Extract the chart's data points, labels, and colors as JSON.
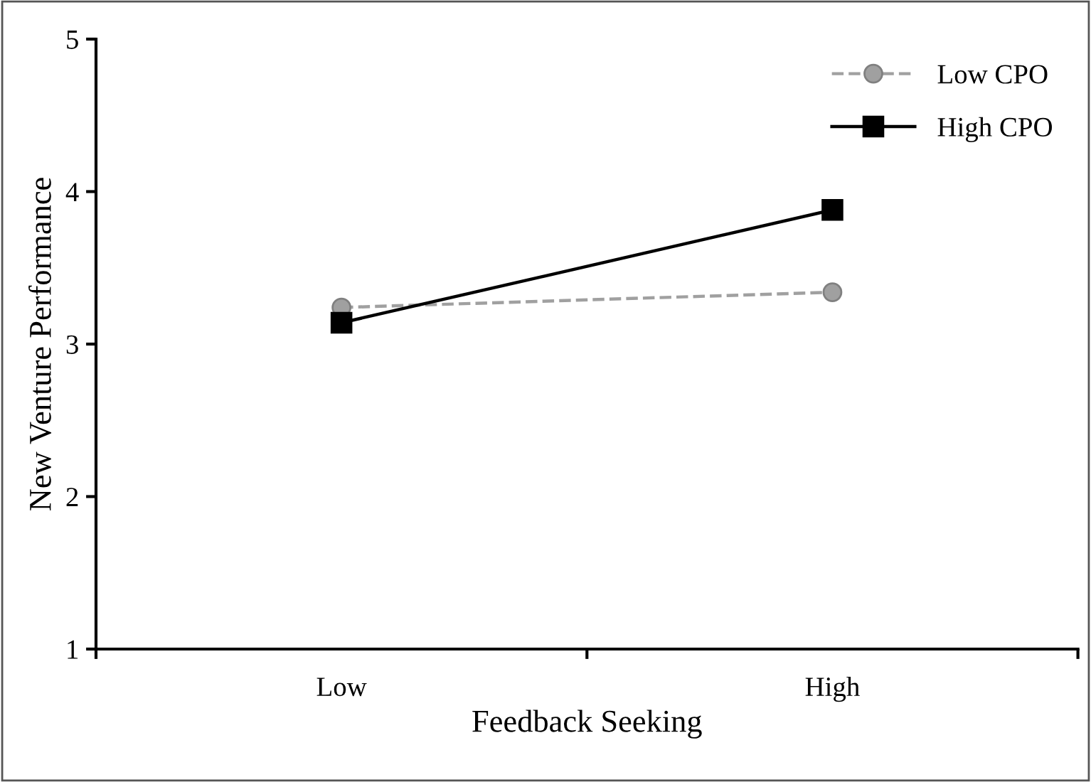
{
  "chart_data": {
    "type": "line",
    "xlabel": "Feedback Seeking",
    "ylabel": "New Venture Performance",
    "categories": [
      "Low",
      "High"
    ],
    "series": [
      {
        "name": "Low CPO",
        "color": "#a0a0a0",
        "values": [
          3.24,
          3.34
        ],
        "marker": "circle",
        "line_style": "dashed"
      },
      {
        "name": "High CPO",
        "color": "#000000",
        "values": [
          3.14,
          3.88
        ],
        "marker": "square",
        "line_style": "solid"
      }
    ],
    "ylim": [
      1,
      5
    ],
    "yticks": [
      1,
      2,
      3,
      4,
      5
    ],
    "grid": false,
    "legend": "top right"
  }
}
